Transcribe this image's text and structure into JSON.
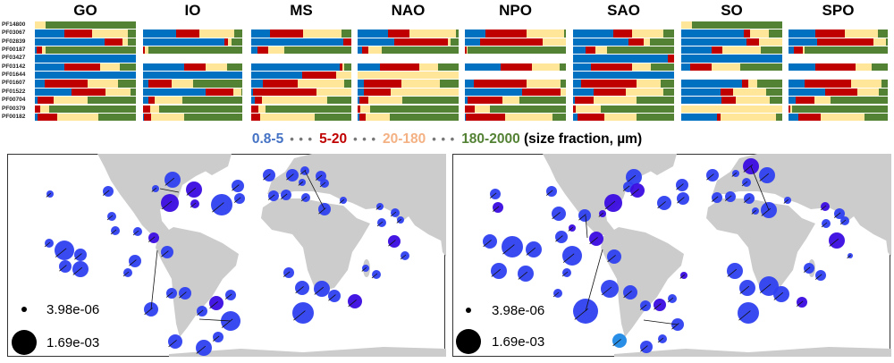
{
  "colors": {
    "blue": "#0070c0",
    "red": "#c00000",
    "yellow": "#ffe699",
    "green": "#548235",
    "circle": "#2f40f0",
    "circle_dark": "#3a0ce0",
    "circle_light": "#1e88e5",
    "land": "#cccccc"
  },
  "legend": {
    "items": [
      {
        "label": "0.8-5",
        "color": "#4472c4"
      },
      {
        "label": "5-20",
        "color": "#c00000"
      },
      {
        "label": "20-180",
        "color": "#f4b183"
      },
      {
        "label": "180-2000",
        "color": "#548235"
      }
    ],
    "separator": "• • •",
    "suffix": "(size fraction, µm)"
  },
  "chart_data": [
    {
      "type": "bar",
      "orientation": "horizontal",
      "stacked": true,
      "series_order": [
        "0.8-5",
        "5-20",
        "20-180",
        "180-2000"
      ],
      "row_labels": [
        "PF14800",
        "PF03067",
        "PF02839",
        "PF00187",
        "PF03427",
        "PF03142",
        "PF01644",
        "PF01607",
        "PF01522",
        "PF00704",
        "PF00379",
        "PF00182"
      ],
      "panels": [
        {
          "title": "GO",
          "rows": [
            [
              0,
              0,
              0.11,
              0.89
            ],
            [
              0.29,
              0.28,
              0.35,
              0.08
            ],
            [
              0.69,
              0.18,
              0.05,
              0.08
            ],
            [
              0.02,
              0.05,
              0.04,
              0.89
            ],
            [
              1,
              0,
              0,
              0
            ],
            [
              0.29,
              0.36,
              0.19,
              0.16
            ],
            [
              1,
              0,
              0,
              0
            ],
            [
              0.1,
              0.42,
              0.3,
              0.18
            ],
            [
              0.36,
              0.34,
              0.25,
              0.05
            ],
            [
              0.03,
              0.16,
              0.33,
              0.48
            ],
            [
              0,
              0.05,
              0.09,
              0.86
            ],
            [
              0.03,
              0.19,
              0.41,
              0.37
            ]
          ]
        },
        {
          "title": "IO",
          "rows": [
            null,
            [
              0.33,
              0.24,
              0.35,
              0.08
            ],
            [
              0.82,
              0.04,
              0.03,
              0.11
            ],
            [
              0,
              0.02,
              0.03,
              0.95
            ],
            null,
            [
              0.41,
              0.22,
              0.22,
              0.15
            ],
            [
              1,
              0,
              0,
              0
            ],
            [
              0.05,
              0.24,
              0.21,
              0.5
            ],
            [
              0.63,
              0.28,
              0.08,
              0.01
            ],
            [
              0.05,
              0.07,
              0.28,
              0.6
            ],
            [
              0,
              0.07,
              0.09,
              0.84
            ],
            [
              0.01,
              0.07,
              0.33,
              0.59
            ]
          ]
        },
        {
          "title": "MS",
          "rows": [
            null,
            [
              0.19,
              0.33,
              0.38,
              0.1
            ],
            [
              0.92,
              0.08,
              0,
              0
            ],
            [
              0.06,
              0.11,
              0.16,
              0.67
            ],
            null,
            [
              0.88,
              0.03,
              0.02,
              0.07
            ],
            [
              0.51,
              0.34,
              0.15,
              0
            ],
            [
              0.12,
              0.34,
              0.47,
              0.07
            ],
            [
              0.02,
              0.63,
              0.35,
              0
            ],
            [
              0.04,
              0.07,
              0.65,
              0.24
            ],
            [
              0,
              0.07,
              0.07,
              0.86
            ],
            [
              0,
              0.09,
              0.54,
              0.37
            ]
          ]
        },
        {
          "title": "NAO",
          "rows": [
            null,
            [
              0.3,
              0.21,
              0.46,
              0.03
            ],
            [
              0.36,
              0.53,
              0.03,
              0.08
            ],
            [
              0.04,
              0.07,
              0.13,
              0.76
            ],
            null,
            [
              0.22,
              0.39,
              0.19,
              0.2
            ],
            [
              0,
              0,
              1,
              0
            ],
            [
              0.06,
              0.37,
              0.38,
              0.19
            ],
            [
              0.06,
              0.27,
              0.67,
              0
            ],
            [
              0.02,
              0.09,
              0.33,
              0.56
            ],
            [
              0,
              0.03,
              0.09,
              0.88
            ],
            [
              0.02,
              0.06,
              0.24,
              0.68
            ]
          ]
        },
        {
          "title": "NPO",
          "rows": [
            null,
            [
              0.2,
              0.41,
              0.37,
              0.02
            ],
            [
              0.15,
              0.62,
              0.23,
              0
            ],
            [
              0,
              0.02,
              0.01,
              0.97
            ],
            null,
            [
              0.35,
              0.31,
              0.28,
              0.06
            ],
            null,
            [
              0.09,
              0.52,
              0.34,
              0.05
            ],
            [
              0.57,
              0.38,
              0.05,
              0
            ],
            [
              0.03,
              0.34,
              0.17,
              0.46
            ],
            [
              0,
              0.1,
              0.15,
              0.75
            ],
            [
              0.01,
              0.39,
              0.47,
              0.13
            ]
          ]
        },
        {
          "title": "SAO",
          "rows": [
            null,
            [
              0.4,
              0.18,
              0.31,
              0.11
            ],
            [
              0.55,
              0.15,
              0.06,
              0.24
            ],
            [
              0.12,
              0.1,
              0.12,
              0.66
            ],
            [
              0.94,
              0.06,
              0,
              0
            ],
            [
              0.18,
              0.4,
              0.19,
              0.23
            ],
            [
              1,
              0,
              0,
              0
            ],
            [
              0.08,
              0.55,
              0.24,
              0.13
            ],
            [
              0.2,
              0.32,
              0.37,
              0.11
            ],
            [
              0.02,
              0.18,
              0.43,
              0.37
            ],
            [
              0,
              0.03,
              0.24,
              0.73
            ],
            [
              0.04,
              0.27,
              0.32,
              0.37
            ]
          ]
        },
        {
          "title": "SO",
          "rows": [
            [
              0,
              0,
              0.11,
              0.89
            ],
            [
              0.62,
              0.06,
              0.19,
              0.13
            ],
            [
              0.65,
              0.12,
              0.23,
              0
            ],
            [
              0.3,
              0.11,
              0.38,
              0.21
            ],
            [
              1,
              0,
              0,
              0
            ],
            [
              0.09,
              0.21,
              0.28,
              0.42
            ],
            null,
            [
              0.6,
              0.06,
              0.09,
              0.25
            ],
            [
              0.39,
              0.12,
              0.33,
              0.16
            ],
            [
              0.4,
              0.14,
              0.34,
              0.12
            ],
            [
              0,
              0,
              1,
              0
            ],
            [
              0.35,
              0.04,
              0.55,
              0.06
            ]
          ]
        },
        {
          "title": "SPO",
          "rows": [
            null,
            [
              0.27,
              0.3,
              0.33,
              0.1
            ],
            [
              0.29,
              0.57,
              0.12,
              0.02
            ],
            [
              0.05,
              0.09,
              0.02,
              0.84
            ],
            null,
            [
              0.27,
              0.41,
              0.16,
              0.16
            ],
            null,
            [
              0.16,
              0.47,
              0.31,
              0.06
            ],
            [
              0.37,
              0.32,
              0.22,
              0.09
            ],
            [
              0.07,
              0.19,
              0.16,
              0.58
            ],
            [
              0,
              0.02,
              0.02,
              0.96
            ],
            [
              0.1,
              0.22,
              0.45,
              0.23
            ]
          ]
        }
      ]
    },
    {
      "type": "scatter",
      "kind": "bubble-map",
      "size_legend": [
        "3.98e-06",
        "1.69e-03"
      ]
    },
    {
      "type": "scatter",
      "kind": "bubble-map",
      "size_legend": [
        "3.98e-06",
        "1.69e-03"
      ]
    }
  ]
}
